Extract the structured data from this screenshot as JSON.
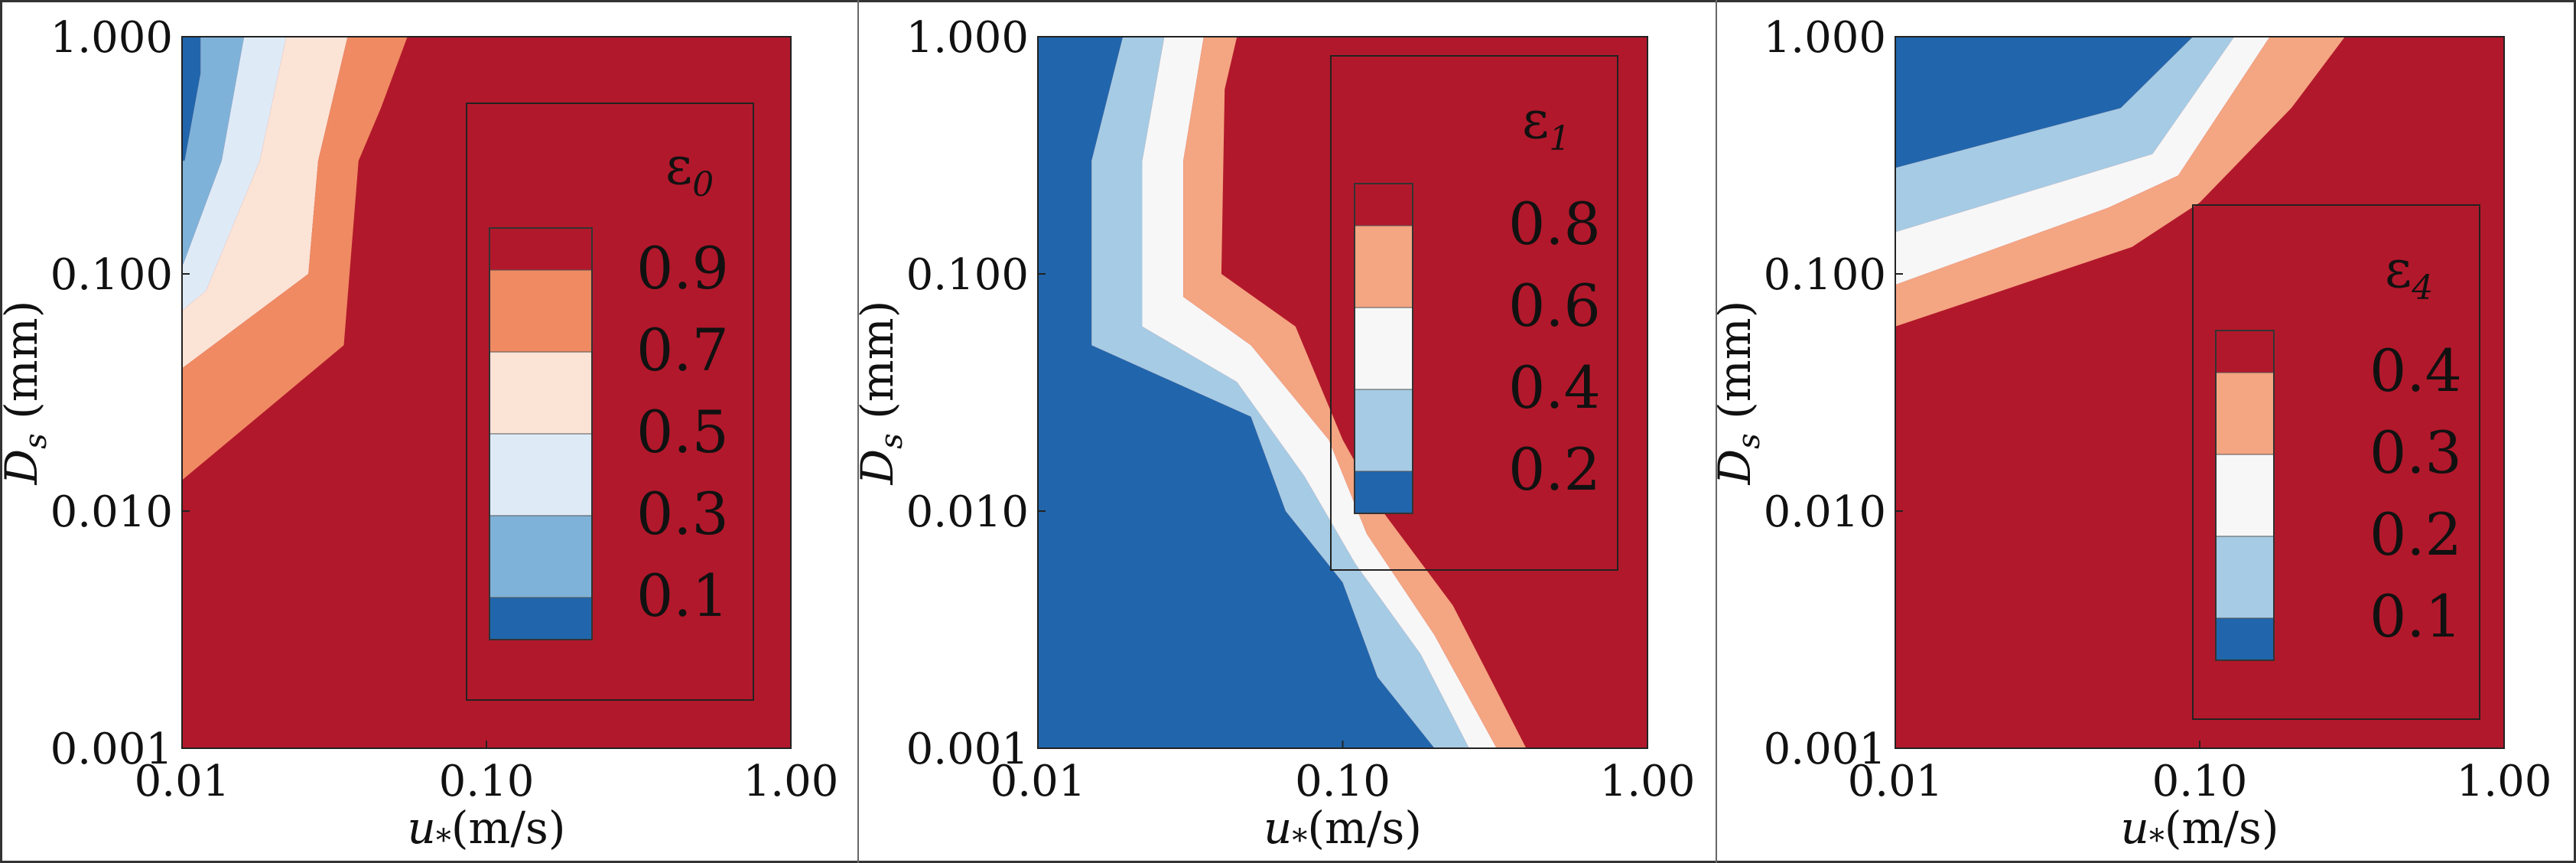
{
  "chart_data": [
    {
      "type": "contour",
      "title": "",
      "xlabel": "u*(m/s)",
      "ylabel": "Ds (mm)",
      "x_scale": "log",
      "y_scale": "log",
      "xlim": [
        0.01,
        1.0
      ],
      "ylim": [
        0.001,
        1.0
      ],
      "x_ticks": [
        "0.01",
        "0.10",
        "1.00"
      ],
      "y_ticks": [
        "0.001",
        "0.010",
        "0.100",
        "1.000"
      ],
      "x_label_parts": {
        "symbol": "u",
        "subscript": "*",
        "unit": "(m/s)"
      },
      "y_label_parts": {
        "symbol": "D",
        "subscript": "s",
        "unit": " (mm)"
      },
      "legend": {
        "title_symbol": "ε",
        "title_subscript": "0",
        "labels": [
          "0.9",
          "0.7",
          "0.5",
          "0.3",
          "0.1"
        ],
        "colors": [
          "#b2182b",
          "#ef8a62",
          "#fbe3d6",
          "#deebf7",
          "#7fb2d8",
          "#2166ac"
        ]
      },
      "regions": [
        {
          "level": "<0.1",
          "color": "#2166ac",
          "polygon": [
            [
              0.01,
              1.0
            ],
            [
              0.0115,
              1.0
            ],
            [
              0.0115,
              0.7
            ],
            [
              0.0102,
              0.3
            ],
            [
              0.01,
              0.3
            ]
          ]
        },
        {
          "level": "0.1–0.3",
          "color": "#7fb2d8",
          "polygon": [
            [
              0.0115,
              1.0
            ],
            [
              0.016,
              1.0
            ],
            [
              0.0135,
              0.3
            ],
            [
              0.0101,
              0.11
            ],
            [
              0.01,
              0.11
            ],
            [
              0.01,
              0.3
            ],
            [
              0.0102,
              0.3
            ],
            [
              0.0115,
              0.7
            ]
          ]
        },
        {
          "level": "0.3–0.5",
          "color": "#deebf7",
          "polygon": [
            [
              0.016,
              1.0
            ],
            [
              0.022,
              1.0
            ],
            [
              0.018,
              0.3
            ],
            [
              0.012,
              0.085
            ],
            [
              0.01,
              0.07
            ],
            [
              0.01,
              0.11
            ],
            [
              0.0101,
              0.11
            ],
            [
              0.0135,
              0.3
            ]
          ]
        },
        {
          "level": "0.5–0.7",
          "color": "#fbe3d6",
          "polygon": [
            [
              0.022,
              1.0
            ],
            [
              0.035,
              1.0
            ],
            [
              0.028,
              0.3
            ],
            [
              0.026,
              0.1
            ],
            [
              0.01,
              0.04
            ],
            [
              0.01,
              0.07
            ],
            [
              0.012,
              0.085
            ],
            [
              0.018,
              0.3
            ]
          ]
        },
        {
          "level": "0.7–0.9",
          "color": "#ef8a62",
          "polygon": [
            [
              0.035,
              1.0
            ],
            [
              0.055,
              1.0
            ],
            [
              0.045,
              0.5
            ],
            [
              0.038,
              0.3
            ],
            [
              0.034,
              0.05
            ],
            [
              0.01,
              0.0135
            ],
            [
              0.01,
              0.04
            ],
            [
              0.026,
              0.1
            ],
            [
              0.028,
              0.3
            ]
          ]
        }
      ]
    },
    {
      "type": "contour",
      "title": "",
      "xlabel": "u*(m/s)",
      "ylabel": "Ds (mm)",
      "x_scale": "log",
      "y_scale": "log",
      "xlim": [
        0.01,
        1.0
      ],
      "ylim": [
        0.001,
        1.0
      ],
      "x_ticks": [
        "0.01",
        "0.10",
        "1.00"
      ],
      "y_ticks": [
        "0.001",
        "0.010",
        "0.100",
        "1.000"
      ],
      "x_label_parts": {
        "symbol": "u",
        "subscript": "*",
        "unit": "(m/s)"
      },
      "y_label_parts": {
        "symbol": "D",
        "subscript": "s",
        "unit": " (mm)"
      },
      "legend": {
        "title_symbol": "ε",
        "title_subscript": "1",
        "labels": [
          "0.8",
          "0.6",
          "0.4",
          "0.2"
        ],
        "colors": [
          "#b2182b",
          "#f4a582",
          "#f7f7f7",
          "#a6cbe4",
          "#2166ac"
        ]
      },
      "regions": [
        {
          "level": "<0.2",
          "color": "#2166ac",
          "polygon": [
            [
              0.01,
              1.0
            ],
            [
              0.019,
              1.0
            ],
            [
              0.015,
              0.3
            ],
            [
              0.015,
              0.05
            ],
            [
              0.05,
              0.025
            ],
            [
              0.065,
              0.01
            ],
            [
              0.1,
              0.005
            ],
            [
              0.13,
              0.002
            ],
            [
              0.2,
              0.001
            ],
            [
              0.01,
              0.001
            ]
          ]
        },
        {
          "level": "0.2–0.4",
          "color": "#a6cbe4",
          "polygon": [
            [
              0.019,
              1.0
            ],
            [
              0.026,
              1.0
            ],
            [
              0.022,
              0.3
            ],
            [
              0.022,
              0.06
            ],
            [
              0.045,
              0.035
            ],
            [
              0.075,
              0.014
            ],
            [
              0.11,
              0.006
            ],
            [
              0.18,
              0.0025
            ],
            [
              0.26,
              0.001
            ],
            [
              0.2,
              0.001
            ],
            [
              0.13,
              0.002
            ],
            [
              0.1,
              0.005
            ],
            [
              0.065,
              0.01
            ],
            [
              0.05,
              0.025
            ],
            [
              0.015,
              0.05
            ],
            [
              0.015,
              0.3
            ]
          ]
        },
        {
          "level": "0.4–0.6",
          "color": "#f7f7f7",
          "polygon": [
            [
              0.026,
              1.0
            ],
            [
              0.035,
              1.0
            ],
            [
              0.03,
              0.3
            ],
            [
              0.03,
              0.08
            ],
            [
              0.05,
              0.05
            ],
            [
              0.09,
              0.02
            ],
            [
              0.12,
              0.008
            ],
            [
              0.2,
              0.003
            ],
            [
              0.32,
              0.001
            ],
            [
              0.26,
              0.001
            ],
            [
              0.18,
              0.0025
            ],
            [
              0.11,
              0.006
            ],
            [
              0.075,
              0.014
            ],
            [
              0.045,
              0.035
            ],
            [
              0.022,
              0.06
            ],
            [
              0.022,
              0.3
            ]
          ]
        },
        {
          "level": "0.6–0.8",
          "color": "#f4a582",
          "polygon": [
            [
              0.035,
              1.0
            ],
            [
              0.045,
              1.0
            ],
            [
              0.041,
              0.6
            ],
            [
              0.04,
              0.1
            ],
            [
              0.07,
              0.06
            ],
            [
              0.1,
              0.02
            ],
            [
              0.135,
              0.01
            ],
            [
              0.23,
              0.004
            ],
            [
              0.4,
              0.001
            ],
            [
              0.32,
              0.001
            ],
            [
              0.2,
              0.003
            ],
            [
              0.12,
              0.008
            ],
            [
              0.09,
              0.02
            ],
            [
              0.05,
              0.05
            ],
            [
              0.03,
              0.08
            ],
            [
              0.03,
              0.3
            ]
          ]
        }
      ]
    },
    {
      "type": "contour",
      "title": "",
      "xlabel": "u*(m/s)",
      "ylabel": "Ds (mm)",
      "x_scale": "log",
      "y_scale": "log",
      "xlim": [
        0.01,
        1.0
      ],
      "ylim": [
        0.001,
        1.0
      ],
      "x_ticks": [
        "0.01",
        "0.10",
        "1.00"
      ],
      "y_ticks": [
        "0.001",
        "0.010",
        "0.100",
        "1.000"
      ],
      "x_label_parts": {
        "symbol": "u",
        "subscript": "*",
        "unit": "(m/s)"
      },
      "y_label_parts": {
        "symbol": "D",
        "subscript": "s",
        "unit": " (mm)"
      },
      "legend": {
        "title_symbol": "ε",
        "title_subscript": "4",
        "labels": [
          "0.4",
          "0.3",
          "0.2",
          "0.1"
        ],
        "colors": [
          "#b2182b",
          "#f4a582",
          "#f7f7f7",
          "#a6cbe4",
          "#2166ac"
        ]
      },
      "regions": [
        {
          "level": "<0.1",
          "color": "#2166ac",
          "polygon": [
            [
              0.01,
              1.0
            ],
            [
              0.095,
              1.0
            ],
            [
              0.055,
              0.5
            ],
            [
              0.01,
              0.28
            ]
          ]
        },
        {
          "level": "0.1–0.2",
          "color": "#a6cbe4",
          "polygon": [
            [
              0.095,
              1.0
            ],
            [
              0.13,
              1.0
            ],
            [
              0.07,
              0.32
            ],
            [
              0.01,
              0.15
            ],
            [
              0.01,
              0.28
            ],
            [
              0.055,
              0.5
            ]
          ]
        },
        {
          "level": "0.2–0.3",
          "color": "#f7f7f7",
          "polygon": [
            [
              0.13,
              1.0
            ],
            [
              0.17,
              1.0
            ],
            [
              0.085,
              0.26
            ],
            [
              0.05,
              0.19
            ],
            [
              0.01,
              0.09
            ],
            [
              0.01,
              0.15
            ],
            [
              0.07,
              0.32
            ]
          ]
        },
        {
          "level": "0.3–0.4",
          "color": "#f4a582",
          "polygon": [
            [
              0.17,
              1.0
            ],
            [
              0.3,
              1.0
            ],
            [
              0.2,
              0.5
            ],
            [
              0.1,
              0.2
            ],
            [
              0.06,
              0.13
            ],
            [
              0.01,
              0.06
            ],
            [
              0.01,
              0.09
            ],
            [
              0.05,
              0.19
            ],
            [
              0.085,
              0.26
            ]
          ]
        }
      ]
    }
  ]
}
